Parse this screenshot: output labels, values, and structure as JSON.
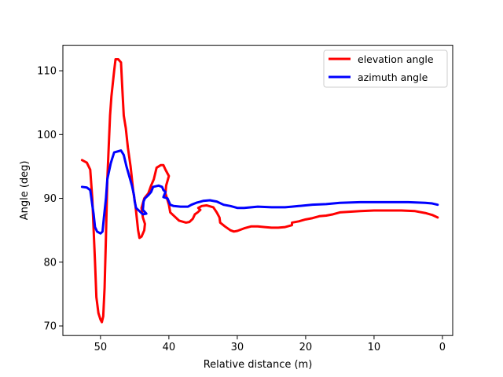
{
  "chart_data": {
    "type": "line",
    "title": "",
    "xlabel": "Relative distance (m)",
    "ylabel": "Angle (deg)",
    "xlim": [
      55.5,
      -1.5
    ],
    "ylim": [
      68.5,
      114
    ],
    "xticks": [
      50,
      40,
      30,
      20,
      10,
      0
    ],
    "yticks": [
      70,
      80,
      90,
      100,
      110
    ],
    "xtick_labels": [
      "50",
      "40",
      "30",
      "20",
      "10",
      "0"
    ],
    "ytick_labels": [
      "70",
      "80",
      "90",
      "100",
      "110"
    ],
    "grid": false,
    "legend_position": "top-right",
    "series": [
      {
        "name": "elevation angle",
        "color": "#ff0000",
        "points": [
          [
            52.7,
            96.0
          ],
          [
            52.0,
            95.6
          ],
          [
            51.5,
            94.5
          ],
          [
            51.2,
            90.0
          ],
          [
            51.0,
            85.0
          ],
          [
            50.8,
            80.0
          ],
          [
            50.6,
            74.5
          ],
          [
            50.3,
            72.0
          ],
          [
            50.0,
            71.0
          ],
          [
            49.8,
            70.6
          ],
          [
            49.6,
            71.5
          ],
          [
            49.4,
            76.0
          ],
          [
            49.2,
            84.0
          ],
          [
            49.0,
            93.0
          ],
          [
            48.8,
            98.0
          ],
          [
            48.6,
            103.0
          ],
          [
            48.4,
            106.0
          ],
          [
            48.2,
            108.0
          ],
          [
            48.0,
            110.0
          ],
          [
            47.8,
            111.8
          ],
          [
            47.4,
            111.8
          ],
          [
            47.0,
            111.3
          ],
          [
            46.8,
            107.0
          ],
          [
            46.6,
            103.0
          ],
          [
            46.3,
            101.0
          ],
          [
            46.0,
            98.0
          ],
          [
            45.6,
            95.0
          ],
          [
            45.2,
            91.0
          ],
          [
            44.9,
            89.0
          ],
          [
            44.7,
            87.0
          ],
          [
            44.5,
            85.0
          ],
          [
            44.3,
            83.8
          ],
          [
            44.0,
            84.0
          ],
          [
            43.6,
            85.0
          ],
          [
            43.5,
            86.0
          ],
          [
            43.8,
            87.0
          ],
          [
            44.0,
            88.5
          ],
          [
            43.6,
            90.0
          ],
          [
            43.0,
            90.8
          ],
          [
            42.6,
            92.0
          ],
          [
            42.2,
            93.0
          ],
          [
            41.8,
            94.8
          ],
          [
            41.2,
            95.2
          ],
          [
            40.8,
            95.2
          ],
          [
            40.5,
            94.5
          ],
          [
            40.0,
            93.5
          ],
          [
            40.4,
            92.0
          ],
          [
            40.5,
            90.8
          ],
          [
            40.0,
            89.0
          ],
          [
            39.8,
            87.8
          ],
          [
            39.2,
            87.2
          ],
          [
            38.5,
            86.5
          ],
          [
            37.5,
            86.2
          ],
          [
            37.0,
            86.3
          ],
          [
            36.5,
            86.8
          ],
          [
            36.2,
            87.5
          ],
          [
            35.8,
            87.8
          ],
          [
            35.4,
            88.2
          ],
          [
            35.7,
            88.5
          ],
          [
            35.2,
            88.8
          ],
          [
            34.5,
            88.9
          ],
          [
            33.5,
            88.6
          ],
          [
            33.0,
            87.8
          ],
          [
            32.6,
            87.0
          ],
          [
            32.5,
            86.2
          ],
          [
            31.8,
            85.6
          ],
          [
            31.0,
            85.0
          ],
          [
            30.5,
            84.8
          ],
          [
            30.0,
            84.9
          ],
          [
            29.0,
            85.3
          ],
          [
            28.0,
            85.6
          ],
          [
            27.0,
            85.6
          ],
          [
            26.0,
            85.5
          ],
          [
            25.0,
            85.4
          ],
          [
            24.0,
            85.4
          ],
          [
            23.0,
            85.5
          ],
          [
            22.0,
            85.8
          ],
          [
            22.0,
            86.2
          ],
          [
            21.0,
            86.4
          ],
          [
            20.0,
            86.7
          ],
          [
            19.0,
            86.9
          ],
          [
            18.0,
            87.2
          ],
          [
            17.0,
            87.3
          ],
          [
            16.0,
            87.5
          ],
          [
            15.0,
            87.8
          ],
          [
            12.0,
            88.0
          ],
          [
            10.0,
            88.1
          ],
          [
            6.0,
            88.1
          ],
          [
            4.0,
            88.0
          ],
          [
            2.5,
            87.7
          ],
          [
            1.5,
            87.4
          ],
          [
            0.7,
            87.0
          ]
        ]
      },
      {
        "name": "azimuth angle",
        "color": "#0000ff",
        "points": [
          [
            52.7,
            91.8
          ],
          [
            52.0,
            91.7
          ],
          [
            51.5,
            91.3
          ],
          [
            51.2,
            89.0
          ],
          [
            51.0,
            87.5
          ],
          [
            50.8,
            85.5
          ],
          [
            50.5,
            84.8
          ],
          [
            50.0,
            84.5
          ],
          [
            49.7,
            84.8
          ],
          [
            49.5,
            87.0
          ],
          [
            49.2,
            90.0
          ],
          [
            49.0,
            93.0
          ],
          [
            48.5,
            95.5
          ],
          [
            48.3,
            96.2
          ],
          [
            48.0,
            97.2
          ],
          [
            47.0,
            97.5
          ],
          [
            46.6,
            96.8
          ],
          [
            46.2,
            95.0
          ],
          [
            45.8,
            93.5
          ],
          [
            45.4,
            92.0
          ],
          [
            45.1,
            90.5
          ],
          [
            45.0,
            89.5
          ],
          [
            44.8,
            88.5
          ],
          [
            44.3,
            88.0
          ],
          [
            43.8,
            87.5
          ],
          [
            43.3,
            87.6
          ],
          [
            43.8,
            88.2
          ],
          [
            43.7,
            89.5
          ],
          [
            43.5,
            90.0
          ],
          [
            43.0,
            90.5
          ],
          [
            42.6,
            91.0
          ],
          [
            42.3,
            91.8
          ],
          [
            41.5,
            92.0
          ],
          [
            41.0,
            91.8
          ],
          [
            40.8,
            91.3
          ],
          [
            40.5,
            91.0
          ],
          [
            40.8,
            90.2
          ],
          [
            40.2,
            90.0
          ],
          [
            39.8,
            89.0
          ],
          [
            39.3,
            88.8
          ],
          [
            38.3,
            88.7
          ],
          [
            37.2,
            88.7
          ],
          [
            36.7,
            89.0
          ],
          [
            36.0,
            89.3
          ],
          [
            35.0,
            89.6
          ],
          [
            34.0,
            89.7
          ],
          [
            33.0,
            89.5
          ],
          [
            32.0,
            89.0
          ],
          [
            31.0,
            88.8
          ],
          [
            30.0,
            88.5
          ],
          [
            29.0,
            88.5
          ],
          [
            27.0,
            88.7
          ],
          [
            25.0,
            88.6
          ],
          [
            23.0,
            88.6
          ],
          [
            22.0,
            88.7
          ],
          [
            21.0,
            88.8
          ],
          [
            19.0,
            89.0
          ],
          [
            17.0,
            89.1
          ],
          [
            15.0,
            89.3
          ],
          [
            12.0,
            89.4
          ],
          [
            9.0,
            89.4
          ],
          [
            5.0,
            89.4
          ],
          [
            2.5,
            89.3
          ],
          [
            1.5,
            89.2
          ],
          [
            0.7,
            89.0
          ]
        ]
      }
    ]
  }
}
